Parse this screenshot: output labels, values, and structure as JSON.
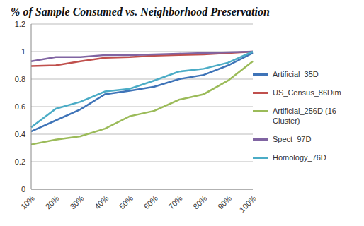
{
  "chart_data": {
    "type": "line",
    "title": "% of Sample Consumed vs. Neighborhood Preservation",
    "categories": [
      "10%",
      "20%",
      "30%",
      "40%",
      "50%",
      "60%",
      "70%",
      "80%",
      "90%",
      "100%"
    ],
    "ylim": [
      0,
      1.2
    ],
    "yticks": [
      0,
      0.2,
      0.4,
      0.6,
      0.8,
      1,
      1.2
    ],
    "grid": true,
    "legend": "right",
    "marker": "none",
    "series": [
      {
        "name": "Artificial_35D",
        "color": "#3f74b8",
        "values": [
          0.42,
          0.5,
          0.58,
          0.69,
          0.715,
          0.745,
          0.8,
          0.83,
          0.9,
          0.99
        ]
      },
      {
        "name": "US_Census_86Dim",
        "color": "#c0504d",
        "values": [
          0.895,
          0.9,
          0.93,
          0.955,
          0.96,
          0.97,
          0.975,
          0.98,
          0.99,
          1.0
        ]
      },
      {
        "name": "Artificial_256D (16 Cluster)",
        "color": "#9bbb59",
        "values": [
          0.325,
          0.36,
          0.385,
          0.44,
          0.53,
          0.57,
          0.65,
          0.69,
          0.79,
          0.93
        ]
      },
      {
        "name": "Spect_97D",
        "color": "#8064a2",
        "values": [
          0.93,
          0.96,
          0.96,
          0.975,
          0.975,
          0.98,
          0.985,
          0.99,
          0.995,
          1.0
        ]
      },
      {
        "name": "Homology_76D",
        "color": "#4bacc6",
        "values": [
          0.45,
          0.585,
          0.635,
          0.71,
          0.73,
          0.79,
          0.855,
          0.875,
          0.92,
          1.0
        ]
      }
    ]
  }
}
